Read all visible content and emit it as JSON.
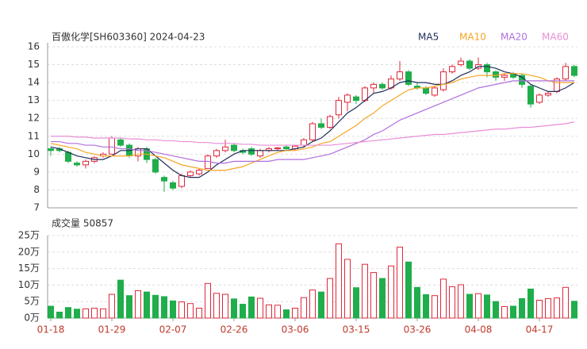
{
  "chart_data": [
    {
      "type": "candlestick",
      "title": "百傲化学[SH603360] 2024-04-23",
      "up_color": "#e0283c",
      "down_color": "#1fae4b",
      "open": [
        10.3,
        10.3,
        10.1,
        9.5,
        9.4,
        9.6,
        9.9,
        10.0,
        10.8,
        10.5,
        9.9,
        10.3,
        9.7,
        8.7,
        8.4,
        8.2,
        8.8,
        8.9,
        9.2,
        9.9,
        10.2,
        10.5,
        10.2,
        10.3,
        9.9,
        10.2,
        10.3,
        10.4,
        10.3,
        10.5,
        10.8,
        11.7,
        11.5,
        12.2,
        12.9,
        13.2,
        13.0,
        13.7,
        13.9,
        13.7,
        14.2,
        14.6,
        13.8,
        13.7,
        13.3,
        13.6,
        14.6,
        15.0,
        15.2,
        14.8,
        15.0,
        14.6,
        14.3,
        14.5,
        14.4,
        13.8,
        12.9,
        13.3,
        13.5,
        14.2,
        14.9
      ],
      "high": [
        10.4,
        10.4,
        10.2,
        9.6,
        9.7,
        9.9,
        10.1,
        11.0,
        10.9,
        10.6,
        10.4,
        10.4,
        9.8,
        8.8,
        8.5,
        8.9,
        9.1,
        9.2,
        10.0,
        10.3,
        10.8,
        10.6,
        10.3,
        10.4,
        10.3,
        10.4,
        10.4,
        10.5,
        10.5,
        10.9,
        11.8,
        12.0,
        12.2,
        13.2,
        13.4,
        13.3,
        13.8,
        14.0,
        14.0,
        14.4,
        15.2,
        14.7,
        14.0,
        13.8,
        13.8,
        14.8,
        15.0,
        15.4,
        15.3,
        15.4,
        15.1,
        14.7,
        14.5,
        14.6,
        14.5,
        13.9,
        13.4,
        13.5,
        14.3,
        15.1,
        15.0
      ],
      "low": [
        9.9,
        10.1,
        9.5,
        9.3,
        9.2,
        9.5,
        9.8,
        10.0,
        10.4,
        9.8,
        9.6,
        9.5,
        8.9,
        7.9,
        8.0,
        8.1,
        8.7,
        8.8,
        9.2,
        9.8,
        10.1,
        10.1,
        10.0,
        9.9,
        9.8,
        10.1,
        10.2,
        10.2,
        10.2,
        10.4,
        10.7,
        11.4,
        11.4,
        12.0,
        12.4,
        12.8,
        12.9,
        13.4,
        13.6,
        13.6,
        14.1,
        13.8,
        13.6,
        13.3,
        13.2,
        13.5,
        14.5,
        14.9,
        14.7,
        14.7,
        14.3,
        14.1,
        14.1,
        14.2,
        13.7,
        12.6,
        12.8,
        13.2,
        13.4,
        14.1,
        14.3
      ],
      "close": [
        10.2,
        10.2,
        9.6,
        9.4,
        9.6,
        9.8,
        10.0,
        10.9,
        10.5,
        9.9,
        10.3,
        9.7,
        9.0,
        8.5,
        8.1,
        8.8,
        9.0,
        9.1,
        9.9,
        10.2,
        10.4,
        10.2,
        10.1,
        10.0,
        10.2,
        10.3,
        10.35,
        10.3,
        10.45,
        10.8,
        11.7,
        11.5,
        12.1,
        13.0,
        13.3,
        13.0,
        13.7,
        13.9,
        13.7,
        14.2,
        14.6,
        13.9,
        13.7,
        13.4,
        13.7,
        14.6,
        14.9,
        15.2,
        14.8,
        15.0,
        14.6,
        14.3,
        14.4,
        14.3,
        13.9,
        12.8,
        13.3,
        13.4,
        14.2,
        14.9,
        14.4
      ],
      "series": [
        {
          "name": "MA5",
          "color": "#1f2d5a",
          "values": [
            10.4,
            10.3,
            10.1,
            9.9,
            9.8,
            9.7,
            9.7,
            9.9,
            10.2,
            10.2,
            10.3,
            10.3,
            9.9,
            9.5,
            9.1,
            8.8,
            8.7,
            8.7,
            9.0,
            9.4,
            9.7,
            10.0,
            10.2,
            10.2,
            10.2,
            10.2,
            10.2,
            10.2,
            10.3,
            10.4,
            10.7,
            10.9,
            11.3,
            11.8,
            12.3,
            12.6,
            13.0,
            13.4,
            13.5,
            13.7,
            14.0,
            14.1,
            14.0,
            14.0,
            13.9,
            13.9,
            14.1,
            14.4,
            14.6,
            14.9,
            14.9,
            14.8,
            14.6,
            14.5,
            14.3,
            13.9,
            13.7,
            13.5,
            13.5,
            13.7,
            14.0
          ]
        },
        {
          "name": "MA10",
          "color": "#f5a623",
          "values": [
            10.6,
            10.5,
            10.4,
            10.3,
            10.1,
            10.0,
            9.9,
            9.9,
            9.9,
            9.9,
            10.0,
            10.0,
            9.9,
            9.8,
            9.6,
            9.4,
            9.3,
            9.2,
            9.1,
            9.1,
            9.1,
            9.2,
            9.3,
            9.5,
            9.7,
            9.9,
            10.1,
            10.2,
            10.2,
            10.3,
            10.4,
            10.6,
            10.7,
            11.0,
            11.3,
            11.6,
            12.0,
            12.3,
            12.7,
            13.0,
            13.3,
            13.6,
            13.7,
            13.7,
            13.8,
            13.9,
            14.0,
            14.2,
            14.3,
            14.4,
            14.4,
            14.4,
            14.5,
            14.5,
            14.5,
            14.4,
            14.3,
            14.1,
            14.0,
            14.0,
            14.0
          ]
        },
        {
          "name": "MA20",
          "color": "#b06fdc",
          "values": [
            10.7,
            10.7,
            10.6,
            10.6,
            10.5,
            10.5,
            10.4,
            10.4,
            10.3,
            10.3,
            10.2,
            10.2,
            10.1,
            10.0,
            9.9,
            9.8,
            9.7,
            9.6,
            9.6,
            9.5,
            9.5,
            9.6,
            9.6,
            9.6,
            9.6,
            9.6,
            9.7,
            9.7,
            9.7,
            9.7,
            9.8,
            9.9,
            10.0,
            10.2,
            10.4,
            10.6,
            10.8,
            11.1,
            11.3,
            11.6,
            11.9,
            12.1,
            12.3,
            12.5,
            12.7,
            12.9,
            13.1,
            13.3,
            13.5,
            13.7,
            13.8,
            13.9,
            14.0,
            14.1,
            14.1,
            14.1,
            14.1,
            14.1,
            14.1,
            14.1,
            14.1
          ]
        },
        {
          "name": "MA60",
          "color": "#e88ed6",
          "values": [
            11.0,
            11.0,
            11.0,
            10.95,
            10.95,
            10.9,
            10.9,
            10.9,
            10.9,
            10.85,
            10.85,
            10.8,
            10.8,
            10.75,
            10.75,
            10.7,
            10.7,
            10.65,
            10.65,
            10.6,
            10.6,
            10.6,
            10.55,
            10.55,
            10.5,
            10.5,
            10.5,
            10.5,
            10.5,
            10.5,
            10.5,
            10.5,
            10.5,
            10.55,
            10.6,
            10.65,
            10.7,
            10.75,
            10.8,
            10.85,
            10.9,
            10.95,
            11.0,
            11.05,
            11.1,
            11.1,
            11.15,
            11.2,
            11.25,
            11.3,
            11.35,
            11.4,
            11.4,
            11.45,
            11.5,
            11.5,
            11.55,
            11.6,
            11.65,
            11.7,
            11.8
          ]
        }
      ],
      "ylim": [
        7,
        16
      ],
      "yticks": [
        7,
        8,
        9,
        10,
        11,
        12,
        13,
        14,
        15,
        16
      ],
      "grid": true
    },
    {
      "type": "bar",
      "title": "成交量 50857",
      "categories": [
        "01-18",
        null,
        null,
        null,
        null,
        null,
        null,
        "01-29",
        null,
        null,
        null,
        null,
        null,
        null,
        "02-07",
        null,
        null,
        null,
        null,
        null,
        null,
        "02-26",
        null,
        null,
        null,
        null,
        null,
        null,
        "03-06",
        null,
        null,
        null,
        null,
        null,
        null,
        "03-15",
        null,
        null,
        null,
        null,
        null,
        null,
        "03-26",
        null,
        null,
        null,
        null,
        null,
        null,
        "04-08",
        null,
        null,
        null,
        null,
        null,
        null,
        "04-17",
        null,
        null,
        null,
        null
      ],
      "values": [
        3.6,
        1.8,
        3.2,
        2.7,
        2.8,
        3.0,
        2.8,
        7.2,
        11.5,
        6.8,
        8.3,
        7.9,
        6.9,
        6.5,
        5.2,
        4.9,
        4.4,
        3.0,
        10.5,
        7.5,
        7.2,
        5.8,
        4.2,
        6.4,
        6.0,
        4.0,
        3.9,
        2.5,
        3.0,
        6.2,
        8.5,
        7.9,
        12.0,
        22.5,
        17.8,
        9.2,
        16.3,
        13.8,
        12.0,
        15.8,
        21.5,
        17.0,
        9.3,
        7.1,
        6.8,
        11.8,
        9.5,
        10.1,
        7.2,
        7.4,
        7.0,
        5.0,
        3.5,
        3.6,
        5.9,
        8.8,
        5.4,
        5.9,
        6.1,
        9.3,
        5.09
      ],
      "ylim": [
        0,
        25
      ],
      "yticks": [
        {
          "value": 0,
          "label": "0万"
        },
        {
          "value": 5,
          "label": "5万"
        },
        {
          "value": 10,
          "label": "10万"
        },
        {
          "value": 15,
          "label": "15万"
        },
        {
          "value": 20,
          "label": "20万"
        },
        {
          "value": 25,
          "label": "25万"
        }
      ],
      "grid": true
    }
  ]
}
